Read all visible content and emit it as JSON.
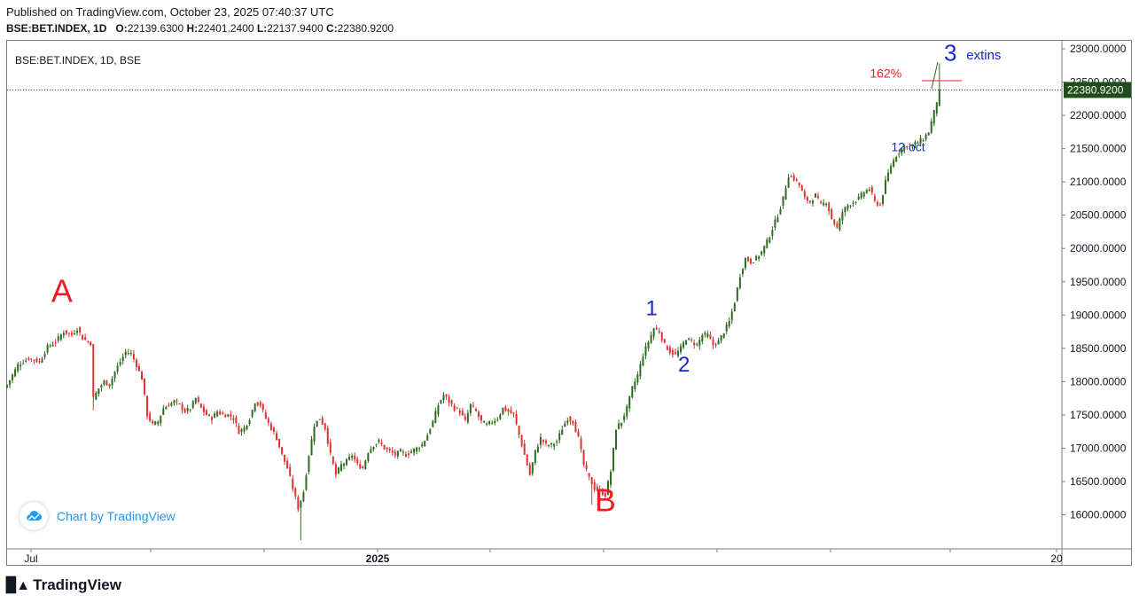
{
  "header": {
    "published": "Published on TradingView.com, October 23, 2025 07:40:37 UTC",
    "symbol": "BSE:BET.INDEX, 1D",
    "open_label": "O:",
    "open": "22139.6300",
    "high_label": "H:",
    "high": "22401.2400",
    "low_label": "L:",
    "low": "22137.9400",
    "close_label": "C:",
    "close": "22380.9200"
  },
  "legend": "BSE:BET.INDEX, 1D, BSE",
  "branding": {
    "badge_text": "Chart by TradingView",
    "footer": "TradingView"
  },
  "colors": {
    "up": "#2e6b1f",
    "down": "#e03131",
    "wave_blue": "#1428d6",
    "wave_red": "#ee1d23",
    "price_tag": "#1f4d1a"
  },
  "chart_data": {
    "type": "candlestick",
    "symbol": "BSE:BET.INDEX",
    "interval": "1D",
    "ylim": [
      15600,
      23000
    ],
    "y_ticks": [
      16000,
      16500,
      17000,
      17500,
      18000,
      18500,
      19000,
      19500,
      20000,
      20500,
      21000,
      21500,
      22000,
      22500,
      23000
    ],
    "y_tick_labels": [
      "16000.0000",
      "16500.0000",
      "17000.0000",
      "17500.0000",
      "18000.0000",
      "18500.0000",
      "19000.0000",
      "19500.0000",
      "20000.0000",
      "20500.0000",
      "21000.0000",
      "21500.0000",
      "22000.0000",
      "22500.0000",
      "23000.0000"
    ],
    "x_labels": [
      "Jul",
      "2025",
      "20"
    ],
    "last_price": 22380.92,
    "last_price_label": "22380.9200",
    "close_path": [
      [
        0,
        17950
      ],
      [
        4,
        18250
      ],
      [
        8,
        18350
      ],
      [
        12,
        18300
      ],
      [
        15,
        18520
      ],
      [
        18,
        18600
      ],
      [
        21,
        18750
      ],
      [
        24,
        18700
      ],
      [
        26,
        18800
      ],
      [
        28,
        18650
      ],
      [
        31,
        18580
      ],
      [
        32,
        17750
      ],
      [
        34,
        17900
      ],
      [
        36,
        18000
      ],
      [
        38,
        17950
      ],
      [
        40,
        18150
      ],
      [
        42,
        18300
      ],
      [
        44,
        18450
      ],
      [
        46,
        18420
      ],
      [
        48,
        18250
      ],
      [
        50,
        18050
      ],
      [
        52,
        17500
      ],
      [
        54,
        17350
      ],
      [
        56,
        17400
      ],
      [
        58,
        17600
      ],
      [
        60,
        17650
      ],
      [
        62,
        17700
      ],
      [
        64,
        17650
      ],
      [
        66,
        17550
      ],
      [
        68,
        17600
      ],
      [
        70,
        17750
      ],
      [
        72,
        17600
      ],
      [
        74,
        17500
      ],
      [
        76,
        17450
      ],
      [
        78,
        17550
      ],
      [
        80,
        17500
      ],
      [
        82,
        17500
      ],
      [
        84,
        17450
      ],
      [
        86,
        17250
      ],
      [
        88,
        17300
      ],
      [
        90,
        17450
      ],
      [
        92,
        17700
      ],
      [
        94,
        17650
      ],
      [
        96,
        17450
      ],
      [
        98,
        17300
      ],
      [
        100,
        17150
      ],
      [
        102,
        16900
      ],
      [
        104,
        16700
      ],
      [
        106,
        16400
      ],
      [
        108,
        16100
      ],
      [
        110,
        16350
      ],
      [
        112,
        16900
      ],
      [
        114,
        17350
      ],
      [
        116,
        17450
      ],
      [
        118,
        17300
      ],
      [
        120,
        16900
      ],
      [
        122,
        16600
      ],
      [
        124,
        16750
      ],
      [
        126,
        16800
      ],
      [
        128,
        16900
      ],
      [
        130,
        16750
      ],
      [
        132,
        16700
      ],
      [
        134,
        16950
      ],
      [
        136,
        17050
      ],
      [
        138,
        17100
      ],
      [
        140,
        17000
      ],
      [
        142,
        16950
      ],
      [
        144,
        16900
      ],
      [
        146,
        16950
      ],
      [
        148,
        16900
      ],
      [
        150,
        16950
      ],
      [
        152,
        17000
      ],
      [
        154,
        17050
      ],
      [
        156,
        17200
      ],
      [
        158,
        17400
      ],
      [
        160,
        17650
      ],
      [
        162,
        17800
      ],
      [
        164,
        17700
      ],
      [
        166,
        17600
      ],
      [
        168,
        17550
      ],
      [
        170,
        17400
      ],
      [
        172,
        17650
      ],
      [
        174,
        17550
      ],
      [
        176,
        17400
      ],
      [
        178,
        17350
      ],
      [
        180,
        17400
      ],
      [
        182,
        17450
      ],
      [
        184,
        17600
      ],
      [
        186,
        17550
      ],
      [
        188,
        17500
      ],
      [
        190,
        17200
      ],
      [
        192,
        16900
      ],
      [
        194,
        16600
      ],
      [
        196,
        16950
      ],
      [
        198,
        17150
      ],
      [
        200,
        17050
      ],
      [
        202,
        17050
      ],
      [
        204,
        17100
      ],
      [
        206,
        17300
      ],
      [
        208,
        17450
      ],
      [
        210,
        17400
      ],
      [
        212,
        17150
      ],
      [
        214,
        16750
      ],
      [
        216,
        16550
      ],
      [
        218,
        16400
      ],
      [
        220,
        16350
      ],
      [
        222,
        16300
      ],
      [
        224,
        16650
      ],
      [
        226,
        17300
      ],
      [
        228,
        17400
      ],
      [
        230,
        17600
      ],
      [
        232,
        17900
      ],
      [
        234,
        18100
      ],
      [
        236,
        18400
      ],
      [
        238,
        18600
      ],
      [
        240,
        18800
      ],
      [
        242,
        18750
      ],
      [
        244,
        18550
      ],
      [
        246,
        18450
      ],
      [
        248,
        18400
      ],
      [
        250,
        18500
      ],
      [
        252,
        18650
      ],
      [
        254,
        18600
      ],
      [
        256,
        18550
      ],
      [
        258,
        18700
      ],
      [
        260,
        18700
      ],
      [
        262,
        18550
      ],
      [
        264,
        18600
      ],
      [
        266,
        18750
      ],
      [
        268,
        18900
      ],
      [
        270,
        19200
      ],
      [
        272,
        19600
      ],
      [
        274,
        19850
      ],
      [
        276,
        19800
      ],
      [
        278,
        19850
      ],
      [
        280,
        19950
      ],
      [
        282,
        20100
      ],
      [
        284,
        20300
      ],
      [
        286,
        20500
      ],
      [
        288,
        20750
      ],
      [
        290,
        21100
      ],
      [
        292,
        21050
      ],
      [
        294,
        20950
      ],
      [
        296,
        20750
      ],
      [
        298,
        20700
      ],
      [
        300,
        20800
      ],
      [
        302,
        20650
      ],
      [
        304,
        20700
      ],
      [
        306,
        20450
      ],
      [
        308,
        20300
      ],
      [
        310,
        20550
      ],
      [
        312,
        20650
      ],
      [
        314,
        20700
      ],
      [
        316,
        20750
      ],
      [
        318,
        20850
      ],
      [
        320,
        20900
      ],
      [
        322,
        20700
      ],
      [
        324,
        20650
      ],
      [
        326,
        21000
      ],
      [
        328,
        21250
      ],
      [
        330,
        21400
      ],
      [
        332,
        21500
      ],
      [
        334,
        21550
      ],
      [
        336,
        21550
      ],
      [
        338,
        21600
      ],
      [
        340,
        21650
      ],
      [
        342,
        21750
      ],
      [
        344,
        22050
      ],
      [
        346,
        22380.92
      ]
    ],
    "annotations": [
      {
        "text": "A",
        "color": "red",
        "at_x": 21,
        "at_y": 19200
      },
      {
        "text": "B",
        "color": "red",
        "at_x": 222,
        "at_y": 16050
      },
      {
        "text": "1",
        "color": "blue",
        "at_x": 239,
        "at_y": 19000
      },
      {
        "text": "2",
        "color": "blue",
        "at_x": 251,
        "at_y": 18150
      },
      {
        "text": "3",
        "color": "blue",
        "at_x": 350,
        "at_y": 22820
      },
      {
        "text": "extins",
        "color": "blue",
        "at_x": 356,
        "at_y": 22840
      },
      {
        "text": "162%",
        "color": "red",
        "at_x": 334,
        "at_y": 22570
      },
      {
        "text": "12 oct",
        "color": "blue",
        "at_x": 338,
        "at_y": 21460
      }
    ],
    "fib_162_level": 22520
  }
}
